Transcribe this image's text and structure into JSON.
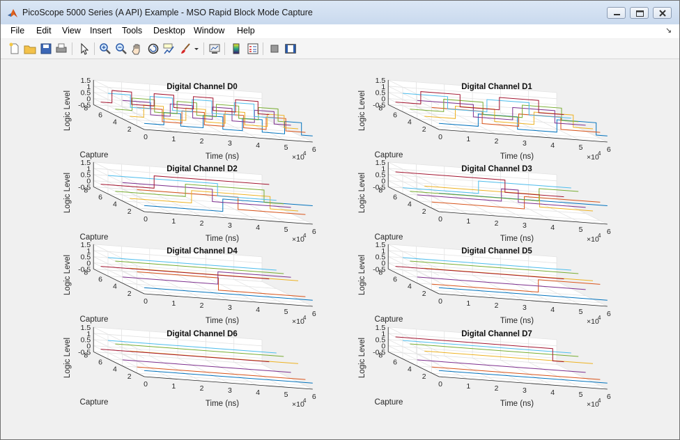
{
  "window": {
    "title": "PicoScope 5000 Series (A API) Example - MSO Rapid Block Mode Capture"
  },
  "menu": [
    "File",
    "Edit",
    "View",
    "Insert",
    "Tools",
    "Desktop",
    "Window",
    "Help"
  ],
  "toolbar": [
    "new-figure-icon",
    "open-file-icon",
    "save-icon",
    "print-icon",
    "select-arrow-icon",
    "zoom-in-icon",
    "zoom-out-icon",
    "pan-icon",
    "rotate-3d-icon",
    "data-cursor-icon",
    "brush-icon",
    "brush-dropdown-icon",
    "link-plot-icon",
    "colorbar-icon",
    "legend-icon",
    "hide-plot-tools-icon",
    "show-plot-tools-icon"
  ],
  "colors": {
    "series": [
      "#0072bd",
      "#d95319",
      "#edb120",
      "#7e2f8e",
      "#77ac30",
      "#4dbeee",
      "#a2142f"
    ]
  },
  "chart_data": [
    {
      "type": "line",
      "title": "Digital Channel D0",
      "xlabel": "Time (ns)",
      "ylabel": "Capture",
      "zlabel": "Logic Level",
      "x_exponent": "×10",
      "x_exponent_power": "4",
      "xlim": [
        0,
        6
      ],
      "ylim": [
        1,
        8
      ],
      "zlim": [
        -0.5,
        1.5
      ],
      "x_ticks": [
        "0",
        "1",
        "2",
        "3",
        "4",
        "5",
        "6"
      ],
      "y_ticks": [
        "2",
        "4",
        "6",
        "8"
      ],
      "z_ticks": [
        "-0.5",
        "0",
        "0.5",
        "1",
        "1.5"
      ],
      "grid": true,
      "captures": [
        {
          "capture": 1,
          "x_transitions": [
            0,
            0.7,
            1.3,
            2.1,
            2.8,
            3.5,
            4.2,
            5.0,
            5.6
          ],
          "levels": [
            0,
            1,
            0,
            1,
            0,
            1,
            0,
            1,
            0
          ]
        },
        {
          "capture": 2,
          "x_transitions": [
            0,
            0.9,
            1.6,
            2.4,
            3.1,
            3.8,
            4.6,
            5.3
          ],
          "levels": [
            1,
            0,
            1,
            0,
            1,
            0,
            1,
            0
          ]
        },
        {
          "capture": 3,
          "x_transitions": [
            0,
            0.5,
            1.2,
            2.0,
            2.7,
            3.4,
            4.1,
            4.9,
            5.5
          ],
          "levels": [
            0,
            1,
            0,
            1,
            0,
            1,
            0,
            1,
            0
          ]
        },
        {
          "capture": 4,
          "x_transitions": [
            0,
            1.0,
            1.7,
            2.5,
            3.2,
            3.9,
            4.7,
            5.4
          ],
          "levels": [
            1,
            0,
            1,
            0,
            1,
            0,
            1,
            0
          ]
        },
        {
          "capture": 5,
          "x_transitions": [
            0,
            0.6,
            1.4,
            2.2,
            2.9,
            3.6,
            4.4,
            5.1,
            5.8
          ],
          "levels": [
            0,
            1,
            0,
            1,
            0,
            1,
            0,
            1,
            0
          ]
        },
        {
          "capture": 6,
          "x_transitions": [
            0,
            0.8,
            1.5,
            2.3,
            3.0,
            3.7,
            4.5,
            5.2
          ],
          "levels": [
            1,
            0,
            1,
            0,
            1,
            0,
            1,
            0
          ]
        },
        {
          "capture": 7,
          "x_transitions": [
            0,
            0.4,
            1.1,
            1.9,
            2.6,
            3.3,
            4.0,
            4.8,
            5.6
          ],
          "levels": [
            0,
            1,
            0,
            1,
            0,
            1,
            0,
            1,
            0
          ]
        }
      ]
    },
    {
      "type": "line",
      "title": "Digital Channel D1",
      "xlabel": "Time (ns)",
      "ylabel": "Capture",
      "zlabel": "Logic Level",
      "x_exponent": "×10",
      "x_exponent_power": "4",
      "xlim": [
        0,
        6
      ],
      "ylim": [
        1,
        8
      ],
      "zlim": [
        -0.5,
        1.5
      ],
      "x_ticks": [
        "0",
        "1",
        "2",
        "3",
        "4",
        "5",
        "6"
      ],
      "y_ticks": [
        "2",
        "4",
        "6",
        "8"
      ],
      "z_ticks": [
        "-0.5",
        "0",
        "0.5",
        "1",
        "1.5"
      ],
      "grid": true,
      "captures": [
        {
          "capture": 1,
          "x_transitions": [
            0,
            1.4,
            2.8,
            4.2,
            5.6
          ],
          "levels": [
            0,
            1,
            0,
            1,
            0
          ]
        },
        {
          "capture": 2,
          "x_transitions": [
            0,
            1.8,
            3.1,
            4.6
          ],
          "levels": [
            1,
            0,
            1,
            0
          ]
        },
        {
          "capture": 3,
          "x_transitions": [
            0,
            1.1,
            2.5,
            3.9,
            5.3
          ],
          "levels": [
            0,
            1,
            0,
            1,
            0
          ]
        },
        {
          "capture": 4,
          "x_transitions": [
            0,
            2.0,
            3.4,
            4.9
          ],
          "levels": [
            1,
            0,
            1,
            0
          ]
        },
        {
          "capture": 5,
          "x_transitions": [
            0,
            1.2,
            2.6,
            4.0,
            5.4
          ],
          "levels": [
            0,
            1,
            0,
            1,
            0
          ]
        },
        {
          "capture": 6,
          "x_transitions": [
            0,
            1.6,
            3.0,
            4.5
          ],
          "levels": [
            1,
            0,
            1,
            0
          ]
        },
        {
          "capture": 7,
          "x_transitions": [
            0,
            0.9,
            2.3,
            3.7,
            5.1
          ],
          "levels": [
            0,
            1,
            0,
            1,
            0
          ]
        }
      ]
    },
    {
      "type": "line",
      "title": "Digital Channel D2",
      "xlabel": "Time (ns)",
      "ylabel": "Capture",
      "zlabel": "Logic Level",
      "x_exponent": "×10",
      "x_exponent_power": "4",
      "xlim": [
        0,
        6
      ],
      "ylim": [
        1,
        8
      ],
      "zlim": [
        -0.5,
        1.5
      ],
      "x_ticks": [
        "0",
        "1",
        "2",
        "3",
        "4",
        "5",
        "6"
      ],
      "y_ticks": [
        "2",
        "4",
        "6",
        "8"
      ],
      "z_ticks": [
        "-0.5",
        "0",
        "0.5",
        "1",
        "1.5"
      ],
      "grid": true,
      "captures": [
        {
          "capture": 1,
          "x_transitions": [
            0,
            2.8
          ],
          "levels": [
            0,
            1
          ]
        },
        {
          "capture": 2,
          "x_transitions": [
            0,
            3.6
          ],
          "levels": [
            1,
            0
          ]
        },
        {
          "capture": 3,
          "x_transitions": [
            0,
            2.2,
            5.0
          ],
          "levels": [
            0,
            1,
            0
          ]
        },
        {
          "capture": 4,
          "x_transitions": [
            0,
            3.2
          ],
          "levels": [
            1,
            0
          ]
        },
        {
          "capture": 5,
          "x_transitions": [
            0,
            2.5,
            5.3
          ],
          "levels": [
            0,
            1,
            0
          ]
        },
        {
          "capture": 6,
          "x_transitions": [
            0,
            3.9
          ],
          "levels": [
            1,
            0
          ]
        },
        {
          "capture": 7,
          "x_transitions": [
            0,
            1.9
          ],
          "levels": [
            0,
            1
          ]
        }
      ]
    },
    {
      "type": "line",
      "title": "Digital Channel D3",
      "xlabel": "Time (ns)",
      "ylabel": "Capture",
      "zlabel": "Logic Level",
      "x_exponent": "×10",
      "x_exponent_power": "4",
      "xlim": [
        0,
        6
      ],
      "ylim": [
        1,
        8
      ],
      "zlim": [
        -0.5,
        1.5
      ],
      "x_ticks": [
        "0",
        "1",
        "2",
        "3",
        "4",
        "5",
        "6"
      ],
      "y_ticks": [
        "2",
        "4",
        "6",
        "8"
      ],
      "z_ticks": [
        "-0.5",
        "0",
        "0.5",
        "1",
        "1.5"
      ],
      "grid": true,
      "captures": [
        {
          "capture": 1,
          "x_transitions": [
            0
          ],
          "levels": [
            1
          ]
        },
        {
          "capture": 2,
          "x_transitions": [
            0,
            3.3
          ],
          "levels": [
            0,
            1
          ]
        },
        {
          "capture": 3,
          "x_transitions": [
            0,
            4.1
          ],
          "levels": [
            1,
            0
          ]
        },
        {
          "capture": 4,
          "x_transitions": [
            0,
            3.0,
            3.6
          ],
          "levels": [
            0,
            1,
            0
          ]
        },
        {
          "capture": 5,
          "x_transitions": [
            0,
            4.6
          ],
          "levels": [
            0,
            1
          ]
        },
        {
          "capture": 6,
          "x_transitions": [
            0,
            2.7
          ],
          "levels": [
            0,
            1
          ]
        },
        {
          "capture": 7,
          "x_transitions": [
            0,
            3.9
          ],
          "levels": [
            1,
            0
          ]
        }
      ]
    },
    {
      "type": "line",
      "title": "Digital Channel D4",
      "xlabel": "Time (ns)",
      "ylabel": "Capture",
      "zlabel": "Logic Level",
      "x_exponent": "×10",
      "x_exponent_power": "4",
      "xlim": [
        0,
        6
      ],
      "ylim": [
        1,
        8
      ],
      "zlim": [
        -0.5,
        1.5
      ],
      "x_ticks": [
        "0",
        "1",
        "2",
        "3",
        "4",
        "5",
        "6"
      ],
      "y_ticks": [
        "2",
        "4",
        "6",
        "8"
      ],
      "z_ticks": [
        "-0.5",
        "0",
        "0.5",
        "1",
        "1.5"
      ],
      "grid": true,
      "captures": [
        {
          "capture": 1,
          "x_transitions": [
            0
          ],
          "levels": [
            0
          ]
        },
        {
          "capture": 2,
          "x_transitions": [
            0,
            2.9
          ],
          "levels": [
            1,
            0
          ]
        },
        {
          "capture": 3,
          "x_transitions": [
            0
          ],
          "levels": [
            1
          ]
        },
        {
          "capture": 4,
          "x_transitions": [
            0,
            3.4
          ],
          "levels": [
            0,
            1
          ]
        },
        {
          "capture": 5,
          "x_transitions": [
            0
          ],
          "levels": [
            1
          ]
        },
        {
          "capture": 6,
          "x_transitions": [
            0
          ],
          "levels": [
            1
          ]
        },
        {
          "capture": 7,
          "x_transitions": [
            0
          ],
          "levels": [
            0
          ]
        }
      ]
    },
    {
      "type": "line",
      "title": "Digital Channel D5",
      "xlabel": "Time (ns)",
      "ylabel": "Capture",
      "zlabel": "Logic Level",
      "x_exponent": "×10",
      "x_exponent_power": "4",
      "xlim": [
        0,
        6
      ],
      "ylim": [
        1,
        8
      ],
      "zlim": [
        -0.5,
        1.5
      ],
      "x_ticks": [
        "0",
        "1",
        "2",
        "3",
        "4",
        "5",
        "6"
      ],
      "y_ticks": [
        "2",
        "4",
        "6",
        "8"
      ],
      "z_ticks": [
        "-0.5",
        "0",
        "0.5",
        "1",
        "1.5"
      ],
      "grid": true,
      "captures": [
        {
          "capture": 1,
          "x_transitions": [
            0
          ],
          "levels": [
            0
          ]
        },
        {
          "capture": 2,
          "x_transitions": [
            0,
            3.8
          ],
          "levels": [
            0,
            1
          ]
        },
        {
          "capture": 3,
          "x_transitions": [
            0
          ],
          "levels": [
            1
          ]
        },
        {
          "capture": 4,
          "x_transitions": [
            0
          ],
          "levels": [
            0
          ]
        },
        {
          "capture": 5,
          "x_transitions": [
            0
          ],
          "levels": [
            1
          ]
        },
        {
          "capture": 6,
          "x_transitions": [
            0
          ],
          "levels": [
            1
          ]
        },
        {
          "capture": 7,
          "x_transitions": [
            0
          ],
          "levels": [
            0
          ]
        }
      ]
    },
    {
      "type": "line",
      "title": "Digital Channel D6",
      "xlabel": "Time (ns)",
      "ylabel": "Capture",
      "zlabel": "Logic Level",
      "x_exponent": "×10",
      "x_exponent_power": "4",
      "xlim": [
        0,
        6
      ],
      "ylim": [
        1,
        8
      ],
      "zlim": [
        -0.5,
        1.5
      ],
      "x_ticks": [
        "0",
        "1",
        "2",
        "3",
        "4",
        "5",
        "6"
      ],
      "y_ticks": [
        "2",
        "4",
        "6",
        "8"
      ],
      "z_ticks": [
        "-0.5",
        "0",
        "0.5",
        "1",
        "1.5"
      ],
      "grid": true,
      "captures": [
        {
          "capture": 1,
          "x_transitions": [
            0
          ],
          "levels": [
            0
          ]
        },
        {
          "capture": 2,
          "x_transitions": [
            0
          ],
          "levels": [
            0
          ]
        },
        {
          "capture": 3,
          "x_transitions": [
            0
          ],
          "levels": [
            1
          ]
        },
        {
          "capture": 4,
          "x_transitions": [
            0
          ],
          "levels": [
            0
          ]
        },
        {
          "capture": 5,
          "x_transitions": [
            0
          ],
          "levels": [
            1
          ]
        },
        {
          "capture": 6,
          "x_transitions": [
            0
          ],
          "levels": [
            1
          ]
        },
        {
          "capture": 7,
          "x_transitions": [
            0
          ],
          "levels": [
            0
          ]
        }
      ]
    },
    {
      "type": "line",
      "title": "Digital Channel D7",
      "xlabel": "Time (ns)",
      "ylabel": "Capture",
      "zlabel": "Logic Level",
      "x_exponent": "×10",
      "x_exponent_power": "4",
      "xlim": [
        0,
        6
      ],
      "ylim": [
        1,
        8
      ],
      "zlim": [
        -0.5,
        1.5
      ],
      "x_ticks": [
        "0",
        "1",
        "2",
        "3",
        "4",
        "5",
        "6"
      ],
      "y_ticks": [
        "2",
        "4",
        "6",
        "8"
      ],
      "z_ticks": [
        "-0.5",
        "0",
        "0.5",
        "1",
        "1.5"
      ],
      "grid": true,
      "captures": [
        {
          "capture": 1,
          "x_transitions": [
            0
          ],
          "levels": [
            0
          ]
        },
        {
          "capture": 2,
          "x_transitions": [
            0
          ],
          "levels": [
            0
          ]
        },
        {
          "capture": 3,
          "x_transitions": [
            0
          ],
          "levels": [
            1
          ]
        },
        {
          "capture": 4,
          "x_transitions": [
            0
          ],
          "levels": [
            0
          ]
        },
        {
          "capture": 5,
          "x_transitions": [
            0
          ],
          "levels": [
            1
          ]
        },
        {
          "capture": 6,
          "x_transitions": [
            0
          ],
          "levels": [
            1
          ]
        },
        {
          "capture": 7,
          "x_transitions": [
            0,
            5.6
          ],
          "levels": [
            1,
            0
          ]
        }
      ]
    }
  ]
}
